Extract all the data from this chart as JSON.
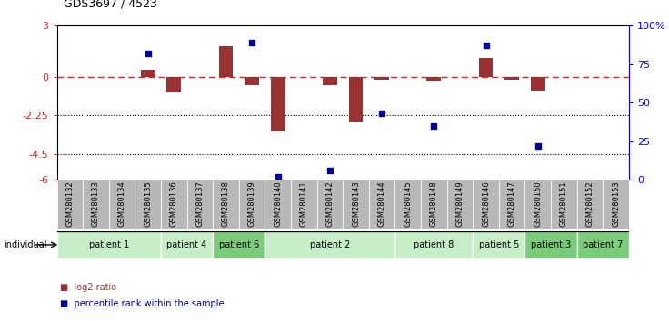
{
  "title": "GDS3697 / 4523",
  "samples": [
    "GSM280132",
    "GSM280133",
    "GSM280134",
    "GSM280135",
    "GSM280136",
    "GSM280137",
    "GSM280138",
    "GSM280139",
    "GSM280140",
    "GSM280141",
    "GSM280142",
    "GSM280143",
    "GSM280144",
    "GSM280145",
    "GSM280148",
    "GSM280149",
    "GSM280146",
    "GSM280147",
    "GSM280150",
    "GSM280151",
    "GSM280152",
    "GSM280153"
  ],
  "log2_ratio": [
    0,
    0,
    0,
    0.4,
    -0.9,
    0,
    1.8,
    -0.5,
    -3.2,
    0,
    -0.5,
    -2.6,
    -0.15,
    0,
    -0.2,
    0,
    1.1,
    -0.15,
    -0.8,
    0,
    0,
    0
  ],
  "percentile": [
    null,
    null,
    null,
    82,
    null,
    null,
    null,
    89,
    2,
    null,
    6,
    null,
    43,
    null,
    35,
    null,
    87,
    null,
    22,
    null,
    null,
    null
  ],
  "patients": [
    {
      "label": "patient 1",
      "start": 0,
      "end": 4,
      "color": "#c8eec8"
    },
    {
      "label": "patient 4",
      "start": 4,
      "end": 6,
      "color": "#c8eec8"
    },
    {
      "label": "patient 6",
      "start": 6,
      "end": 8,
      "color": "#7acc7a"
    },
    {
      "label": "patient 2",
      "start": 8,
      "end": 13,
      "color": "#c8eec8"
    },
    {
      "label": "patient 8",
      "start": 13,
      "end": 16,
      "color": "#c8eec8"
    },
    {
      "label": "patient 5",
      "start": 16,
      "end": 18,
      "color": "#c8eec8"
    },
    {
      "label": "patient 3",
      "start": 18,
      "end": 20,
      "color": "#7acc7a"
    },
    {
      "label": "patient 7",
      "start": 20,
      "end": 22,
      "color": "#7acc7a"
    }
  ],
  "ylim_left": [
    -6,
    3
  ],
  "ylim_right": [
    0,
    100
  ],
  "yticks_left": [
    -6,
    -4.5,
    -2.25,
    0,
    3
  ],
  "ytick_labels_left": [
    "-6",
    "-4.5",
    "-2.25",
    "0",
    "3"
  ],
  "yticks_right": [
    0,
    25,
    50,
    75,
    100
  ],
  "ytick_labels_right": [
    "0",
    "25",
    "50",
    "75",
    "100%"
  ],
  "hline_y": 0,
  "dotted_lines": [
    -2.25,
    -4.5
  ],
  "bar_color": "#993333",
  "dot_color": "#000099",
  "dashed_color": "#dd2222",
  "bg_color": "#ffffff",
  "sample_bg": "#b8b8b8"
}
